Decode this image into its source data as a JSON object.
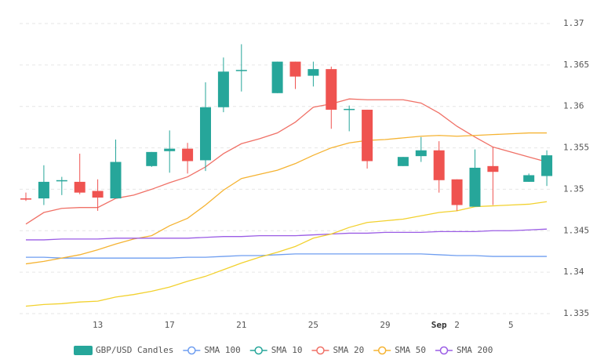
{
  "chart_data": {
    "type": "candlestick",
    "categories": [
      null,
      null,
      null,
      null,
      "13",
      null,
      null,
      null,
      "17",
      null,
      null,
      null,
      "21",
      null,
      null,
      null,
      "25",
      null,
      null,
      null,
      "29",
      null,
      null,
      "Sep",
      "2",
      null,
      null,
      "5",
      null,
      null
    ],
    "candles": {
      "name": "GBP/USD Candles",
      "up_color": "#26a69a",
      "down_color": "#ef5350",
      "open": [
        1.3489,
        1.3489,
        1.351,
        1.3509,
        1.3498,
        1.3489,
        null,
        1.3528,
        1.3546,
        1.3549,
        1.3535,
        1.3599,
        1.3643,
        null,
        1.3616,
        1.3654,
        1.3637,
        1.3645,
        1.3596,
        1.3596,
        null,
        1.3528,
        1.354,
        1.3547,
        1.3512,
        1.3479,
        1.3528,
        null,
        1.3509,
        1.3516
      ],
      "high": [
        1.3496,
        1.3529,
        1.3515,
        1.3543,
        1.3512,
        1.356,
        null,
        1.3545,
        1.3571,
        1.3556,
        1.3629,
        1.3659,
        1.3675,
        null,
        1.3654,
        1.3654,
        1.3654,
        1.3648,
        1.3601,
        1.3596,
        null,
        1.3539,
        1.3563,
        1.3558,
        1.3512,
        1.3548,
        1.3551,
        null,
        1.3519,
        1.3547
      ],
      "low": [
        1.3486,
        1.3481,
        1.3493,
        1.3494,
        1.3474,
        1.3489,
        null,
        1.3527,
        1.352,
        1.3519,
        1.3522,
        1.3593,
        1.3618,
        null,
        1.3616,
        1.3621,
        1.3624,
        1.3573,
        1.357,
        1.3525,
        null,
        1.3528,
        1.3533,
        1.3496,
        1.3474,
        1.3479,
        1.3481,
        null,
        1.3509,
        1.3504
      ],
      "close": [
        1.3488,
        1.3509,
        1.3511,
        1.3496,
        1.349,
        1.3533,
        null,
        1.3545,
        1.3549,
        1.3534,
        1.3599,
        1.3642,
        1.3644,
        null,
        1.3654,
        1.3636,
        1.3645,
        1.3596,
        1.3597,
        1.3534,
        null,
        1.3539,
        1.3547,
        1.3511,
        1.3481,
        1.3526,
        1.3521,
        null,
        1.3517,
        1.3541
      ]
    },
    "series": [
      {
        "name": "SMA 100",
        "color": "#6f9ef0",
        "values": [
          1.3418,
          1.3418,
          1.3417,
          1.3417,
          1.3417,
          1.3417,
          1.3417,
          1.3417,
          1.3417,
          1.3418,
          1.3418,
          1.3419,
          1.342,
          1.342,
          1.3421,
          1.3422,
          1.3422,
          1.3422,
          1.3422,
          1.3422,
          1.3422,
          1.3422,
          1.3422,
          1.3421,
          1.342,
          1.342,
          1.3419,
          1.3419,
          1.3419,
          1.3419
        ]
      },
      {
        "name": "SMA 10",
        "color": "#26a69a",
        "values": [
          null,
          null,
          null,
          null,
          null,
          null,
          null,
          null,
          null,
          null,
          null,
          null,
          null,
          null,
          null,
          null,
          null,
          null,
          null,
          null,
          null,
          null,
          null,
          null,
          null,
          null,
          null,
          null,
          null,
          null
        ]
      },
      {
        "name": "SMA 20",
        "color": "#f07167",
        "values": [
          1.3458,
          1.3472,
          1.3477,
          1.3478,
          1.3478,
          1.3489,
          1.3493,
          1.35,
          1.3508,
          1.3515,
          1.3527,
          1.3543,
          1.3555,
          1.3561,
          1.3568,
          1.3581,
          1.3599,
          1.3603,
          1.3609,
          1.3608,
          1.3608,
          1.3608,
          1.3604,
          1.3592,
          1.3576,
          1.3563,
          1.3551,
          1.3545,
          1.3539,
          1.3533
        ]
      },
      {
        "name": "SMA 50",
        "color": "#f5b332",
        "values": [
          1.341,
          1.3413,
          1.3417,
          1.3421,
          1.3427,
          1.3434,
          1.344,
          1.3444,
          1.3456,
          1.3465,
          1.3481,
          1.3499,
          1.3513,
          1.3518,
          1.3523,
          1.3531,
          1.3541,
          1.355,
          1.3556,
          1.3559,
          1.356,
          1.3562,
          1.3564,
          1.3565,
          1.3564,
          1.3565,
          1.3566,
          1.3567,
          1.3568,
          1.3568
        ]
      },
      {
        "name": "SMA 200",
        "color": "#9b5de5",
        "values": [
          1.3439,
          1.3439,
          1.344,
          1.344,
          1.344,
          1.3441,
          1.3441,
          1.3441,
          1.3441,
          1.3441,
          1.3442,
          1.3443,
          1.3443,
          1.3444,
          1.3444,
          1.3444,
          1.3445,
          1.3446,
          1.3447,
          1.3447,
          1.3448,
          1.3448,
          1.3448,
          1.3449,
          1.3449,
          1.3449,
          1.345,
          1.345,
          1.3451,
          1.3452
        ]
      },
      {
        "color": "#f2d12e",
        "values": [
          1.3359,
          1.3361,
          1.3362,
          1.3364,
          1.3365,
          1.337,
          1.3373,
          1.3377,
          1.3382,
          1.3389,
          1.3395,
          1.3403,
          1.3411,
          1.3418,
          1.3424,
          1.3431,
          1.3441,
          1.3446,
          1.3454,
          1.346,
          1.3462,
          1.3464,
          1.3468,
          1.3472,
          1.3474,
          1.3479,
          1.348,
          1.3481,
          1.3482,
          1.3485
        ]
      }
    ],
    "ylim": [
      1.335,
      1.37
    ],
    "yticks": [
      1.335,
      1.34,
      1.345,
      1.35,
      1.355,
      1.36,
      1.365,
      1.37
    ],
    "grid": true
  }
}
